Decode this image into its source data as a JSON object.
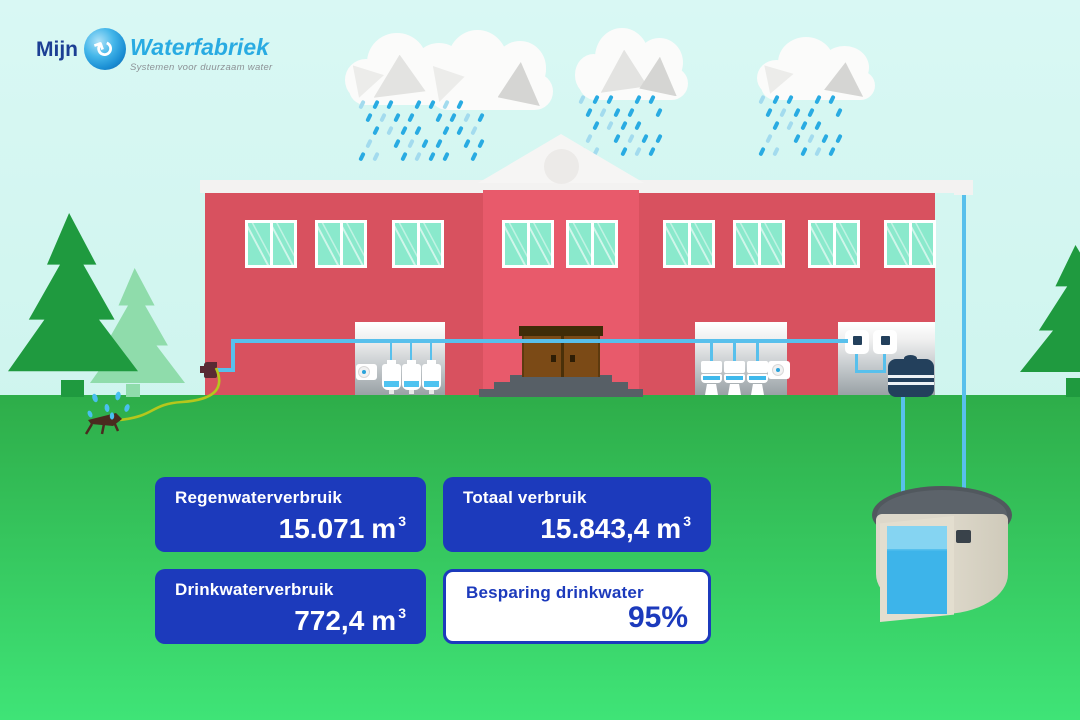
{
  "logo": {
    "prefix": "Mijn",
    "name": "Waterfabriek",
    "tagline": "Systemen voor duurzaam water"
  },
  "cards": {
    "regenwater": {
      "label": "Regenwaterverbruik",
      "value": "15.071",
      "unit": "m",
      "exponent": "3"
    },
    "totaal": {
      "label": "Totaal verbruik",
      "value": "15.843,4",
      "unit": "m",
      "exponent": "3"
    },
    "drinkwater": {
      "label": "Drinkwaterverbruik",
      "value": "772,4",
      "unit": "m",
      "exponent": "3"
    },
    "besparing": {
      "label": "Besparing drinkwater",
      "value": "95%"
    }
  },
  "colors": {
    "card_blue": "#1c3abc",
    "brand_dark_blue": "#1c3f94",
    "brand_light_blue": "#29abe2",
    "building_red": "#d8515f",
    "tower_red": "#e85a6b",
    "window_teal": "#8ae9cc",
    "pipe_blue": "#58c0ec",
    "water_blue": "#3db4ea",
    "grass_top": "#2ead49",
    "grass_bottom": "#3fe477",
    "sky": "#c7f2ea"
  }
}
